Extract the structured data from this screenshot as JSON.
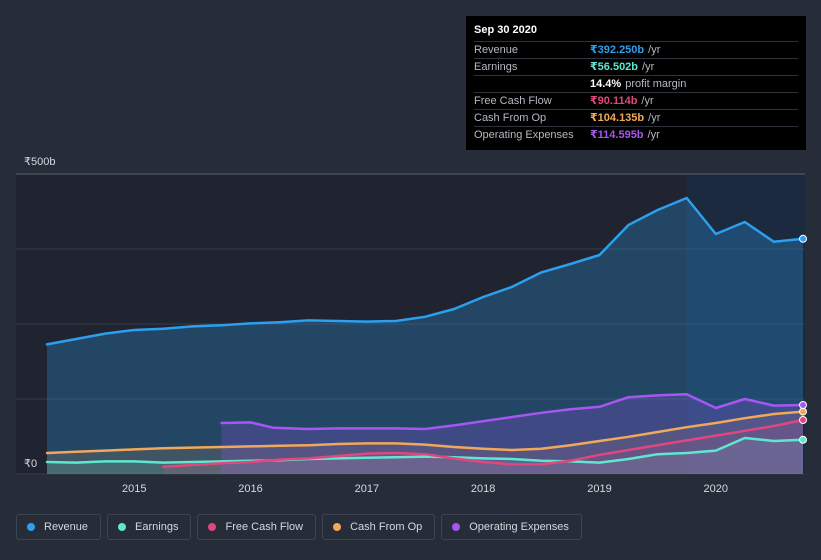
{
  "tooltip": {
    "date": "Sep 30 2020",
    "rows": [
      {
        "label": "Revenue",
        "value": "₹392.250b",
        "unit": "/yr",
        "color": "#2d9fef"
      },
      {
        "label": "Earnings",
        "value": "₹56.502b",
        "unit": "/yr",
        "color": "#5ee8d0"
      },
      {
        "label": "",
        "value": "14.4%",
        "unit": "profit margin",
        "color": "#ffffff"
      },
      {
        "label": "Free Cash Flow",
        "value": "₹90.114b",
        "unit": "/yr",
        "color": "#e0477f"
      },
      {
        "label": "Cash From Op",
        "value": "₹104.135b",
        "unit": "/yr",
        "color": "#f0a85a"
      },
      {
        "label": "Operating Expenses",
        "value": "₹114.595b",
        "unit": "/yr",
        "color": "#a657f2"
      }
    ]
  },
  "legend": [
    {
      "label": "Revenue",
      "color": "#2d9fef"
    },
    {
      "label": "Earnings",
      "color": "#5ee8d0"
    },
    {
      "label": "Free Cash Flow",
      "color": "#e0477f"
    },
    {
      "label": "Cash From Op",
      "color": "#f0a85a"
    },
    {
      "label": "Operating Expenses",
      "color": "#a657f2"
    }
  ],
  "chart_data": {
    "type": "area",
    "title": "",
    "xlabel": "",
    "ylabel": "",
    "y_axis_labels": [
      "₹500b",
      "₹0"
    ],
    "ylim": [
      0,
      500
    ],
    "xlim": [
      2014.25,
      2020.75
    ],
    "x_ticks": [
      2015,
      2016,
      2017,
      2018,
      2019,
      2020
    ],
    "x_tick_labels": [
      "2015",
      "2016",
      "2017",
      "2018",
      "2019",
      "2020"
    ],
    "highlight_from": 2019.75,
    "series": [
      {
        "name": "Revenue",
        "color": "#2d9fef",
        "x": [
          2014.25,
          2014.5,
          2014.75,
          2015.0,
          2015.25,
          2015.5,
          2015.75,
          2016.0,
          2016.25,
          2016.5,
          2016.75,
          2017.0,
          2017.25,
          2017.5,
          2017.75,
          2018.0,
          2018.25,
          2018.5,
          2018.75,
          2019.0,
          2019.25,
          2019.5,
          2019.75,
          2020.0,
          2020.25,
          2020.5,
          2020.75
        ],
        "values": [
          216,
          225,
          234,
          240,
          242,
          246,
          248,
          251,
          253,
          256,
          255,
          254,
          255,
          262,
          275,
          295,
          312,
          336,
          350,
          365,
          415,
          440,
          460,
          400,
          420,
          387,
          392
        ]
      },
      {
        "name": "Earnings",
        "color": "#5ee8d0",
        "x": [
          2014.25,
          2014.5,
          2014.75,
          2015.0,
          2015.25,
          2015.5,
          2015.75,
          2016.0,
          2016.25,
          2016.5,
          2016.75,
          2017.0,
          2017.25,
          2017.5,
          2017.75,
          2018.0,
          2018.25,
          2018.5,
          2018.75,
          2019.0,
          2019.25,
          2019.5,
          2019.75,
          2020.0,
          2020.25,
          2020.5,
          2020.75
        ],
        "values": [
          20,
          19,
          21,
          21,
          19,
          20,
          21,
          22,
          23,
          25,
          26,
          27,
          28,
          29,
          28,
          26,
          25,
          22,
          21,
          19,
          25,
          33,
          35,
          39,
          60,
          55,
          57
        ]
      },
      {
        "name": "Free Cash Flow",
        "color": "#e0477f",
        "x": [
          2015.25,
          2015.5,
          2015.75,
          2016.0,
          2016.25,
          2016.5,
          2016.75,
          2017.0,
          2017.25,
          2017.5,
          2017.75,
          2018.0,
          2018.25,
          2018.5,
          2018.75,
          2019.0,
          2019.25,
          2019.5,
          2019.75,
          2020.0,
          2020.25,
          2020.5,
          2020.75
        ],
        "values": [
          12,
          15,
          18,
          20,
          24,
          26,
          30,
          34,
          35,
          33,
          26,
          20,
          16,
          16,
          22,
          32,
          40,
          48,
          56,
          64,
          72,
          80,
          90
        ]
      },
      {
        "name": "Cash From Op",
        "color": "#f0a85a",
        "x": [
          2014.25,
          2014.5,
          2014.75,
          2015.0,
          2015.25,
          2015.5,
          2015.75,
          2016.0,
          2016.25,
          2016.5,
          2016.75,
          2017.0,
          2017.25,
          2017.5,
          2017.75,
          2018.0,
          2018.25,
          2018.5,
          2018.75,
          2019.0,
          2019.25,
          2019.5,
          2019.75,
          2020.0,
          2020.25,
          2020.5,
          2020.75
        ],
        "values": [
          35,
          37,
          39,
          41,
          43,
          44,
          45,
          46,
          47,
          48,
          50,
          51,
          51,
          49,
          45,
          42,
          40,
          42,
          48,
          55,
          62,
          70,
          78,
          85,
          93,
          100,
          104
        ]
      },
      {
        "name": "Operating Expenses",
        "color": "#a657f2",
        "x": [
          2015.75,
          2016.0,
          2016.2,
          2016.5,
          2016.75,
          2017.0,
          2017.25,
          2017.5,
          2017.75,
          2018.0,
          2018.25,
          2018.5,
          2018.75,
          2019.0,
          2019.25,
          2019.5,
          2019.75,
          2020.0,
          2020.25,
          2020.5,
          2020.75
        ],
        "values": [
          85,
          86,
          77,
          75,
          76,
          76,
          76,
          75,
          81,
          88,
          95,
          102,
          108,
          112,
          128,
          131,
          133,
          110,
          125,
          114,
          115
        ]
      }
    ]
  }
}
